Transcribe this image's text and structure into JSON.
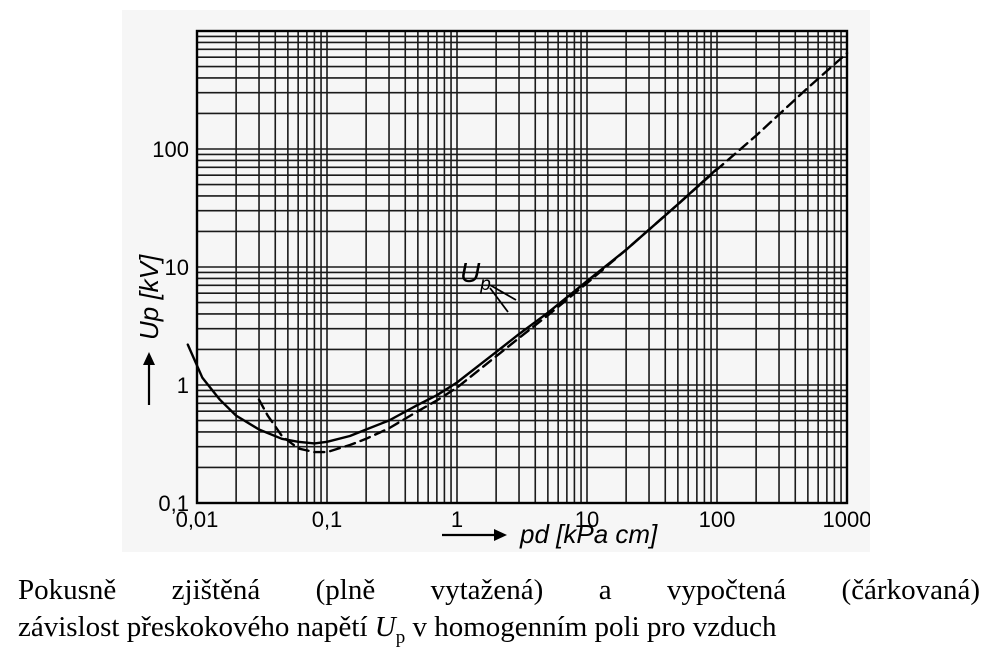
{
  "chart_data": {
    "type": "line",
    "xscale": "log",
    "yscale": "log",
    "xlim": [
      0.01,
      1000
    ],
    "ylim": [
      0.1,
      1000
    ],
    "grid": true,
    "x_ticks": [
      "0,01",
      "0,1",
      "1",
      "10",
      "100",
      "1000"
    ],
    "y_ticks": [
      "0,1",
      "1",
      "10",
      "100"
    ],
    "xlabel": "pd [kPa cm]",
    "ylabel": "Up [kV]",
    "series_label": {
      "main": "U",
      "sub": "p"
    },
    "series": [
      {
        "style": "solid",
        "x": [
          0.0085,
          0.011,
          0.015,
          0.02,
          0.03,
          0.045,
          0.06,
          0.08,
          0.1,
          0.15,
          0.2,
          0.3,
          0.5,
          0.7,
          1,
          2,
          3,
          5,
          10,
          20,
          50,
          100
        ],
        "y": [
          2.2,
          1.15,
          0.75,
          0.55,
          0.42,
          0.35,
          0.33,
          0.32,
          0.33,
          0.37,
          0.42,
          0.5,
          0.68,
          0.82,
          1.05,
          1.9,
          2.7,
          4.1,
          7.6,
          14,
          34,
          68
        ]
      },
      {
        "style": "dashed",
        "x": [
          0.03,
          0.035,
          0.045,
          0.06,
          0.08,
          0.1,
          0.15,
          0.2,
          0.3,
          0.5,
          0.7,
          1,
          2,
          3,
          5,
          10,
          20,
          50,
          100,
          200,
          500,
          1000
        ],
        "y": [
          0.75,
          0.55,
          0.37,
          0.29,
          0.27,
          0.27,
          0.31,
          0.35,
          0.43,
          0.6,
          0.74,
          0.95,
          1.75,
          2.5,
          3.9,
          7.3,
          14,
          34,
          67,
          130,
          330,
          650
        ]
      }
    ]
  },
  "caption": {
    "line1": "Pokusně zjištěná (plně vytažená) a vypočtená (čárkovaná)",
    "line2_before": "závislost přeskokového napětí ",
    "line2_symbol": "U",
    "line2_sub": "p",
    "line2_after": " v homogenním poli pro vzduch"
  }
}
